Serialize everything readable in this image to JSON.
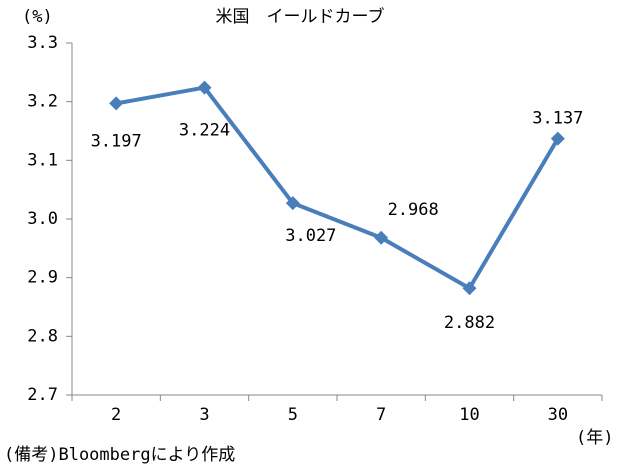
{
  "chart_data": {
    "type": "line",
    "title": "米国　イールドカーブ",
    "y_unit": "(%)",
    "x_unit": "(年)",
    "source": "(備考)Bloombergにより作成",
    "categories": [
      "2",
      "3",
      "5",
      "7",
      "10",
      "30"
    ],
    "values": [
      3.197,
      3.224,
      3.027,
      2.968,
      2.882,
      3.137
    ],
    "color": "#4a7ebb",
    "ylim": [
      2.7,
      3.3
    ],
    "yticks": [
      2.7,
      2.8,
      2.9,
      {
        "value": 3,
        "label": "3.0"
      },
      3.1,
      3.2,
      3.3
    ]
  }
}
